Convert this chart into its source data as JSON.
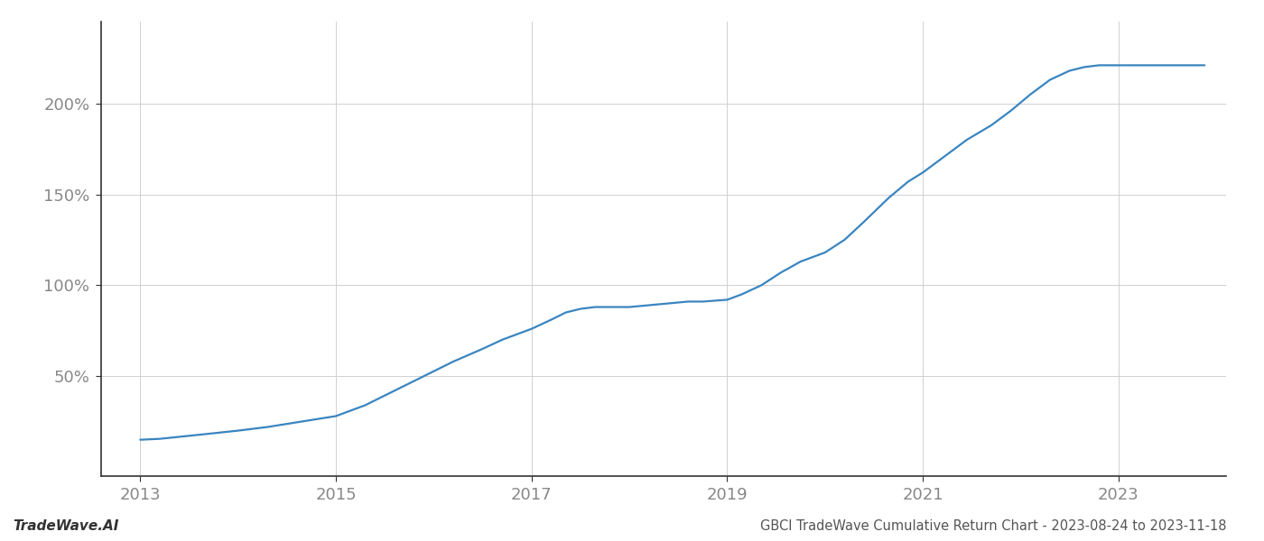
{
  "title": "GBCI TradeWave Cumulative Return Chart - 2023-08-24 to 2023-11-18",
  "watermark": "TradeWave.AI",
  "line_color": "#3a85c0",
  "background_color": "#ffffff",
  "grid_color": "#d0d0d0",
  "x_years": [
    2013.0,
    2013.2,
    2013.65,
    2014.0,
    2014.3,
    2014.65,
    2015.0,
    2015.3,
    2015.6,
    2015.9,
    2016.2,
    2016.5,
    2016.7,
    2016.9,
    2017.0,
    2017.2,
    2017.35,
    2017.5,
    2017.65,
    2017.8,
    2018.0,
    2018.2,
    2018.4,
    2018.6,
    2018.75,
    2019.0,
    2019.15,
    2019.35,
    2019.55,
    2019.75,
    2020.0,
    2020.2,
    2020.4,
    2020.65,
    2020.85,
    2021.0,
    2021.2,
    2021.45,
    2021.7,
    2021.9,
    2022.1,
    2022.3,
    2022.5,
    2022.65,
    2022.8,
    2023.0,
    2023.2,
    2023.5,
    2023.88
  ],
  "y_values": [
    15,
    15.5,
    18,
    20,
    22,
    25,
    28,
    34,
    42,
    50,
    58,
    65,
    70,
    74,
    76,
    81,
    85,
    87,
    88,
    88,
    88,
    89,
    90,
    91,
    91,
    92,
    95,
    100,
    107,
    113,
    118,
    125,
    135,
    148,
    157,
    162,
    170,
    180,
    188,
    196,
    205,
    213,
    218,
    220,
    221,
    221,
    221,
    221,
    221
  ],
  "ytick_labels": [
    "50%",
    "100%",
    "150%",
    "200%"
  ],
  "ytick_values": [
    50,
    100,
    150,
    200
  ],
  "xtick_labels": [
    "2013",
    "2015",
    "2017",
    "2019",
    "2021",
    "2023"
  ],
  "xtick_values": [
    2013,
    2015,
    2017,
    2019,
    2021,
    2023
  ],
  "xlim": [
    2012.6,
    2024.1
  ],
  "ylim": [
    -5,
    245
  ],
  "line_width": 1.6,
  "title_fontsize": 10.5,
  "watermark_fontsize": 11,
  "tick_fontsize": 13,
  "spine_color": "#333333"
}
